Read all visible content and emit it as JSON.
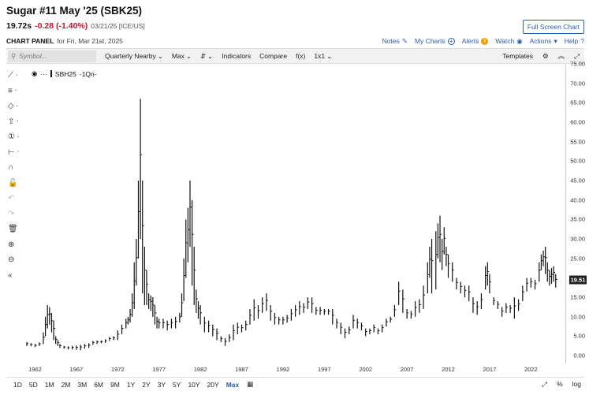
{
  "header": {
    "title": "Sugar #11 May '25 (SBK25)",
    "last": "19.72s",
    "change": "-0.28 (-1.40%)",
    "date": "03/21/25 [ICE/US]",
    "fullscreen_label": "Full Screen Chart"
  },
  "panel": {
    "label": "CHART PANEL",
    "date": "for Fri, Mar 21st, 2025",
    "notes": "Notes",
    "mycharts": "My Charts",
    "alerts": "Alerts",
    "watch": "Watch",
    "actions": "Actions",
    "help": "Help"
  },
  "toolbar": {
    "search_placeholder": "Symbol...",
    "period": "Quarterly Nearby",
    "range": "Max",
    "indicators": "Indicators",
    "compare": "Compare",
    "fx": "f(x)",
    "layout": "1x1",
    "templates": "Templates"
  },
  "series": {
    "symbol": "SBH25",
    "label_suffix": "-1Qn-"
  },
  "price_tag": "19.51",
  "colors": {
    "accent": "#2a5db0",
    "down": "#c8102e",
    "bars": "#111111"
  },
  "left_tools": [
    {
      "icon": "trendline-icon",
      "glyph": "⟋",
      "has_menu": true,
      "enabled": true
    },
    {
      "icon": "fibonacci-icon",
      "glyph": "≡",
      "has_menu": true,
      "enabled": true
    },
    {
      "icon": "shape-icon",
      "glyph": "◇",
      "has_menu": true,
      "enabled": true
    },
    {
      "icon": "arrow-up-icon",
      "glyph": "⇧",
      "has_menu": true,
      "enabled": true
    },
    {
      "icon": "annotation-icon",
      "glyph": "①",
      "has_menu": true,
      "enabled": true
    },
    {
      "icon": "measure-icon",
      "glyph": "⊢",
      "has_menu": true,
      "enabled": true
    },
    {
      "icon": "magnet-icon",
      "glyph": "∩",
      "has_menu": false,
      "enabled": true
    },
    {
      "icon": "lock-icon",
      "glyph": "🔓",
      "has_menu": false,
      "enabled": true
    },
    {
      "icon": "undo-icon",
      "glyph": "↶",
      "has_menu": false,
      "enabled": false
    },
    {
      "icon": "redo-icon",
      "glyph": "↷",
      "has_menu": false,
      "enabled": false
    },
    {
      "icon": "trash-icon",
      "glyph": "🗑",
      "has_menu": false,
      "enabled": true
    },
    {
      "icon": "zoom-in-icon",
      "glyph": "⊕",
      "has_menu": false,
      "enabled": true
    },
    {
      "icon": "zoom-out-icon",
      "glyph": "⊖",
      "has_menu": false,
      "enabled": true
    },
    {
      "icon": "collapse-icon",
      "glyph": "«",
      "has_menu": false,
      "enabled": true
    }
  ],
  "bottom": {
    "ranges": [
      "1D",
      "5D",
      "1M",
      "2M",
      "3M",
      "6M",
      "9M",
      "1Y",
      "2Y",
      "3Y",
      "5Y",
      "10Y",
      "20Y",
      "Max"
    ],
    "active": "Max",
    "percent": "%",
    "log": "log"
  },
  "chart_data": {
    "type": "ohlc",
    "ylim": [
      -2,
      75
    ],
    "y_ticks": [
      "0.00",
      "5.00",
      "10.00",
      "15.00",
      "20.00",
      "25.00",
      "30.00",
      "35.00",
      "40.00",
      "45.00",
      "50.00",
      "55.00",
      "60.00",
      "65.00",
      "70.00",
      "75.00"
    ],
    "x_ticks": [
      "1962",
      "1967",
      "1972",
      "1977",
      "1982",
      "1987",
      "1992",
      "1997",
      "2002",
      "2007",
      "2012",
      "2017",
      "2022"
    ],
    "xlim": [
      1961.0,
      2025.5
    ],
    "bars": [
      [
        1961.0,
        3.5,
        2.5
      ],
      [
        1961.5,
        3.2,
        2.4
      ],
      [
        1962.0,
        3.0,
        2.2
      ],
      [
        1962.5,
        3.4,
        2.5
      ],
      [
        1963.0,
        6.0,
        3.0
      ],
      [
        1963.25,
        10.0,
        5.0
      ],
      [
        1963.5,
        13.0,
        7.0
      ],
      [
        1963.75,
        12.5,
        8.0
      ],
      [
        1964.0,
        11.0,
        6.0
      ],
      [
        1964.25,
        9.0,
        4.0
      ],
      [
        1964.5,
        5.0,
        3.0
      ],
      [
        1964.75,
        4.0,
        2.5
      ],
      [
        1965.0,
        3.0,
        2.0
      ],
      [
        1965.5,
        2.5,
        1.8
      ],
      [
        1966.0,
        2.4,
        1.6
      ],
      [
        1966.5,
        2.5,
        1.6
      ],
      [
        1967.0,
        2.6,
        1.5
      ],
      [
        1967.5,
        2.8,
        1.4
      ],
      [
        1968.0,
        3.0,
        1.8
      ],
      [
        1968.5,
        3.2,
        2.0
      ],
      [
        1969.0,
        3.8,
        2.8
      ],
      [
        1969.5,
        3.9,
        3.0
      ],
      [
        1970.0,
        3.9,
        3.2
      ],
      [
        1970.5,
        4.2,
        3.3
      ],
      [
        1971.0,
        4.8,
        3.8
      ],
      [
        1971.5,
        5.0,
        4.0
      ],
      [
        1972.0,
        6.5,
        4.0
      ],
      [
        1972.5,
        8.0,
        5.5
      ],
      [
        1973.0,
        9.5,
        7.0
      ],
      [
        1973.25,
        10.0,
        8.0
      ],
      [
        1973.5,
        12.0,
        8.5
      ],
      [
        1973.75,
        16.0,
        10.0
      ],
      [
        1974.0,
        24.0,
        12.0
      ],
      [
        1974.25,
        30.0,
        18.0
      ],
      [
        1974.5,
        45.0,
        25.0
      ],
      [
        1974.75,
        66.0,
        30.0
      ],
      [
        1975.0,
        45.0,
        16.0
      ],
      [
        1975.25,
        28.0,
        13.0
      ],
      [
        1975.5,
        22.0,
        13.0
      ],
      [
        1975.75,
        16.0,
        12.0
      ],
      [
        1976.0,
        15.5,
        11.5
      ],
      [
        1976.25,
        15.0,
        10.0
      ],
      [
        1976.5,
        13.0,
        8.0
      ],
      [
        1976.75,
        10.0,
        7.0
      ],
      [
        1977.0,
        9.5,
        7.0
      ],
      [
        1977.5,
        9.5,
        7.0
      ],
      [
        1978.0,
        9.0,
        6.5
      ],
      [
        1978.5,
        9.5,
        7.0
      ],
      [
        1979.0,
        10.0,
        7.0
      ],
      [
        1979.5,
        11.0,
        8.5
      ],
      [
        1979.75,
        16.0,
        10.0
      ],
      [
        1980.0,
        25.0,
        14.0
      ],
      [
        1980.25,
        35.0,
        20.0
      ],
      [
        1980.5,
        38.0,
        24.0
      ],
      [
        1980.75,
        45.0,
        28.0
      ],
      [
        1981.0,
        40.0,
        18.0
      ],
      [
        1981.25,
        28.0,
        13.0
      ],
      [
        1981.5,
        17.0,
        11.0
      ],
      [
        1981.75,
        14.0,
        9.5
      ],
      [
        1982.0,
        13.0,
        8.0
      ],
      [
        1982.5,
        10.0,
        6.0
      ],
      [
        1983.0,
        9.0,
        6.0
      ],
      [
        1983.5,
        8.0,
        5.0
      ],
      [
        1984.0,
        7.0,
        4.0
      ],
      [
        1984.5,
        5.0,
        3.5
      ],
      [
        1985.0,
        4.5,
        2.5
      ],
      [
        1985.5,
        5.5,
        3.5
      ],
      [
        1986.0,
        8.0,
        4.0
      ],
      [
        1986.5,
        8.5,
        5.5
      ],
      [
        1987.0,
        8.0,
        6.0
      ],
      [
        1987.5,
        9.0,
        6.5
      ],
      [
        1988.0,
        12.0,
        8.0
      ],
      [
        1988.5,
        14.5,
        9.0
      ],
      [
        1989.0,
        13.0,
        9.5
      ],
      [
        1989.5,
        15.0,
        11.0
      ],
      [
        1990.0,
        16.0,
        11.5
      ],
      [
        1990.5,
        13.0,
        9.0
      ],
      [
        1991.0,
        11.0,
        8.0
      ],
      [
        1991.5,
        10.0,
        8.0
      ],
      [
        1992.0,
        10.0,
        8.0
      ],
      [
        1992.5,
        10.5,
        8.5
      ],
      [
        1993.0,
        12.0,
        9.0
      ],
      [
        1993.5,
        13.0,
        10.0
      ],
      [
        1994.0,
        14.0,
        10.5
      ],
      [
        1994.5,
        13.5,
        11.0
      ],
      [
        1995.0,
        15.0,
        12.0
      ],
      [
        1995.5,
        15.0,
        11.0
      ],
      [
        1996.0,
        12.5,
        10.5
      ],
      [
        1996.5,
        12.5,
        10.5
      ],
      [
        1997.0,
        12.0,
        10.5
      ],
      [
        1997.5,
        12.0,
        10.5
      ],
      [
        1998.0,
        12.0,
        8.0
      ],
      [
        1998.5,
        9.5,
        7.0
      ],
      [
        1999.0,
        8.5,
        5.5
      ],
      [
        1999.5,
        7.0,
        4.5
      ],
      [
        2000.0,
        7.5,
        5.5
      ],
      [
        2000.5,
        10.5,
        7.0
      ],
      [
        2001.0,
        9.5,
        7.0
      ],
      [
        2001.5,
        8.5,
        6.5
      ],
      [
        2002.0,
        7.0,
        5.0
      ],
      [
        2002.5,
        7.0,
        5.5
      ],
      [
        2003.0,
        8.0,
        6.0
      ],
      [
        2003.5,
        7.0,
        5.5
      ],
      [
        2004.0,
        8.0,
        6.0
      ],
      [
        2004.5,
        9.5,
        7.5
      ],
      [
        2005.0,
        10.0,
        8.5
      ],
      [
        2005.5,
        13.0,
        10.0
      ],
      [
        2006.0,
        19.0,
        13.0
      ],
      [
        2006.5,
        17.0,
        11.0
      ],
      [
        2007.0,
        12.0,
        9.5
      ],
      [
        2007.5,
        11.5,
        9.5
      ],
      [
        2008.0,
        14.0,
        10.0
      ],
      [
        2008.5,
        14.5,
        11.0
      ],
      [
        2009.0,
        18.0,
        12.0
      ],
      [
        2009.5,
        24.0,
        16.0
      ],
      [
        2009.75,
        28.0,
        20.0
      ],
      [
        2010.0,
        30.0,
        16.0
      ],
      [
        2010.5,
        32.0,
        17.0
      ],
      [
        2010.75,
        34.0,
        25.0
      ],
      [
        2011.0,
        36.0,
        24.0
      ],
      [
        2011.25,
        30.0,
        22.0
      ],
      [
        2011.5,
        33.0,
        26.0
      ],
      [
        2011.75,
        28.0,
        23.0
      ],
      [
        2012.0,
        26.0,
        20.0
      ],
      [
        2012.5,
        24.0,
        19.0
      ],
      [
        2013.0,
        20.0,
        17.0
      ],
      [
        2013.5,
        19.0,
        16.0
      ],
      [
        2014.0,
        18.0,
        15.0
      ],
      [
        2014.5,
        18.0,
        14.0
      ],
      [
        2015.0,
        15.0,
        11.0
      ],
      [
        2015.5,
        14.0,
        10.5
      ],
      [
        2016.0,
        16.0,
        12.0
      ],
      [
        2016.5,
        23.0,
        17.0
      ],
      [
        2016.75,
        24.0,
        18.0
      ],
      [
        2017.0,
        21.0,
        16.0
      ],
      [
        2017.5,
        15.0,
        13.0
      ],
      [
        2018.0,
        14.0,
        12.0
      ],
      [
        2018.5,
        12.5,
        10.0
      ],
      [
        2019.0,
        13.5,
        11.0
      ],
      [
        2019.5,
        13.0,
        11.0
      ],
      [
        2020.0,
        15.0,
        9.5
      ],
      [
        2020.5,
        14.5,
        11.5
      ],
      [
        2021.0,
        18.0,
        14.0
      ],
      [
        2021.5,
        20.0,
        16.5
      ],
      [
        2022.0,
        20.0,
        17.5
      ],
      [
        2022.5,
        19.5,
        17.0
      ],
      [
        2023.0,
        24.0,
        19.0
      ],
      [
        2023.25,
        26.0,
        22.0
      ],
      [
        2023.5,
        27.0,
        23.0
      ],
      [
        2023.75,
        28.0,
        21.0
      ],
      [
        2024.0,
        24.0,
        19.0
      ],
      [
        2024.25,
        22.0,
        18.0
      ],
      [
        2024.5,
        22.5,
        18.5
      ],
      [
        2024.75,
        23.0,
        19.0
      ],
      [
        2025.0,
        21.0,
        17.5
      ]
    ]
  }
}
